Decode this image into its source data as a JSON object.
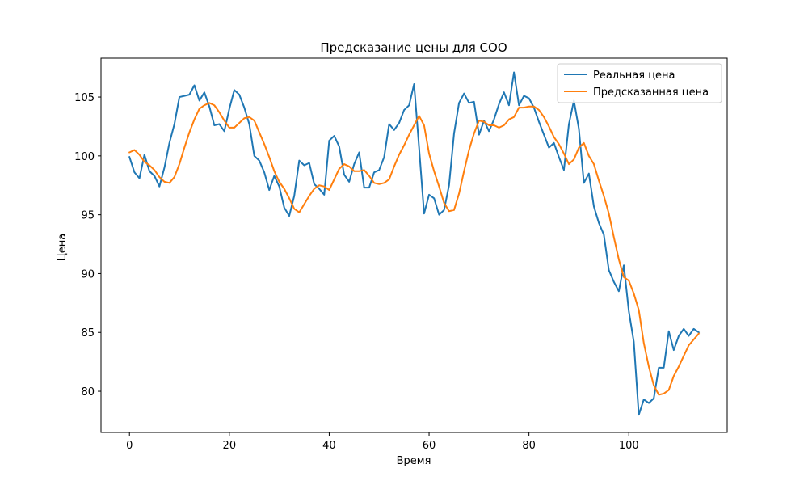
{
  "chart_data": {
    "type": "line",
    "title": "Предсказание цены для COO",
    "xlabel": "Время",
    "ylabel": "Цена",
    "xlim": [
      -5.7,
      119.7
    ],
    "ylim": [
      76.5,
      108.3
    ],
    "xticks": [
      0,
      20,
      40,
      60,
      80,
      100
    ],
    "yticks": [
      80,
      85,
      90,
      95,
      100,
      105
    ],
    "grid": false,
    "legend_position": "top-right",
    "series": [
      {
        "name": "Реальная цена",
        "color": "#1f77b4",
        "values": [
          99.9,
          98.6,
          98.1,
          100.1,
          98.7,
          98.3,
          97.4,
          99.0,
          101.1,
          102.7,
          105.0,
          105.1,
          105.2,
          106.0,
          104.7,
          105.4,
          104.2,
          102.6,
          102.7,
          102.1,
          104.0,
          105.6,
          105.2,
          104.1,
          102.7,
          100.0,
          99.6,
          98.6,
          97.1,
          98.3,
          97.4,
          95.6,
          94.9,
          96.6,
          99.6,
          99.2,
          99.4,
          97.6,
          97.2,
          96.7,
          101.3,
          101.7,
          100.8,
          98.4,
          97.8,
          99.3,
          100.3,
          97.3,
          97.3,
          98.6,
          98.8,
          99.9,
          102.7,
          102.2,
          102.8,
          103.9,
          104.3,
          106.1,
          100.7,
          95.1,
          96.7,
          96.4,
          95.0,
          95.4,
          97.5,
          101.9,
          104.5,
          105.3,
          104.5,
          104.6,
          101.8,
          103.0,
          102.1,
          103.1,
          104.4,
          105.4,
          104.3,
          107.1,
          104.3,
          105.1,
          104.9,
          104.1,
          102.9,
          101.8,
          100.7,
          101.1,
          99.9,
          98.8,
          102.7,
          104.7,
          102.3,
          97.7,
          98.5,
          95.7,
          94.3,
          93.3,
          90.3,
          89.3,
          88.5,
          90.7,
          86.8,
          84.2,
          78.0,
          79.3,
          79.0,
          79.4,
          82.0,
          82.0,
          85.1,
          83.5,
          84.7,
          85.3,
          84.7,
          85.3,
          85.0
        ]
      },
      {
        "name": "Предсказанная цена",
        "color": "#ff7f0e",
        "values": [
          100.3,
          100.5,
          100.1,
          99.5,
          99.2,
          98.8,
          98.2,
          97.8,
          97.7,
          98.2,
          99.3,
          100.7,
          102.0,
          103.1,
          104.0,
          104.3,
          104.5,
          104.3,
          103.7,
          103.0,
          102.4,
          102.4,
          102.8,
          103.2,
          103.3,
          103.0,
          102.0,
          101.0,
          99.9,
          98.7,
          97.8,
          97.2,
          96.4,
          95.5,
          95.2,
          95.9,
          96.6,
          97.2,
          97.5,
          97.4,
          97.1,
          98.0,
          98.9,
          99.3,
          99.1,
          98.7,
          98.7,
          98.8,
          98.3,
          97.7,
          97.6,
          97.7,
          98.0,
          99.1,
          100.1,
          100.9,
          101.8,
          102.6,
          103.4,
          102.6,
          100.2,
          98.7,
          97.4,
          96.0,
          95.3,
          95.4,
          96.8,
          98.7,
          100.5,
          101.9,
          103.0,
          102.9,
          102.6,
          102.6,
          102.4,
          102.6,
          103.1,
          103.3,
          104.1,
          104.1,
          104.2,
          104.2,
          103.9,
          103.3,
          102.5,
          101.6,
          101.0,
          100.2,
          99.3,
          99.7,
          100.7,
          101.1,
          100.0,
          99.3,
          97.9,
          96.6,
          95.1,
          93.1,
          91.2,
          89.7,
          89.4,
          88.3,
          86.9,
          84.1,
          82.1,
          80.5,
          79.7,
          79.8,
          80.1,
          81.3,
          82.1,
          83.0,
          83.9,
          84.4,
          84.9
        ]
      }
    ]
  }
}
